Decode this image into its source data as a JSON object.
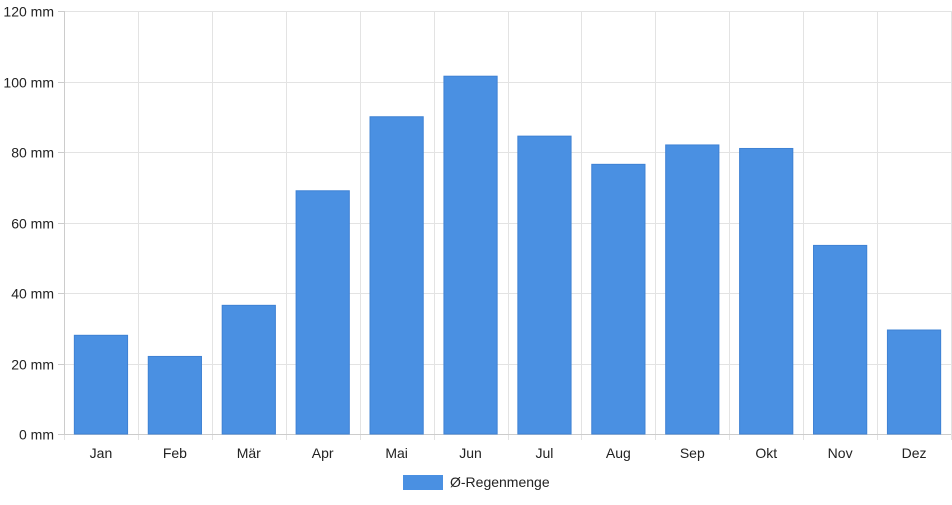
{
  "chart_data": {
    "type": "bar",
    "categories": [
      "Jan",
      "Feb",
      "Mär",
      "Apr",
      "Mai",
      "Jun",
      "Jul",
      "Aug",
      "Sep",
      "Okt",
      "Nov",
      "Dez"
    ],
    "series": [
      {
        "name": "Ø-Regenmenge",
        "values": [
          28,
          22,
          36.5,
          69,
          90,
          101.5,
          84.5,
          76.5,
          82,
          81,
          53.5,
          29.5
        ],
        "color": "#4a90e2"
      }
    ],
    "title": "",
    "xlabel": "",
    "ylabel": "",
    "ylim": [
      0,
      120
    ],
    "y_ticks": [
      0,
      20,
      40,
      60,
      80,
      100,
      120
    ],
    "y_unit": "mm",
    "grid": true,
    "legend_position": "bottom"
  }
}
